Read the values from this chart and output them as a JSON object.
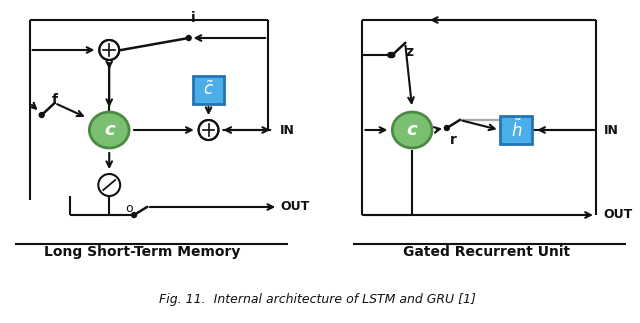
{
  "fig_width": 6.4,
  "fig_height": 3.23,
  "dpi": 100,
  "bg_color": "#ffffff",
  "green_color": "#7bbf72",
  "green_edge": "#4a8a42",
  "blue_color": "#4baee8",
  "blue_edge": "#2275b0",
  "line_color": "#111111",
  "lstm_label": "Long Short-Term Memory",
  "gru_label": "Gated Recurrent Unit",
  "caption": "Fig. 11.  Internal architecture of LSTM and GRU [1]",
  "lw": 1.5
}
